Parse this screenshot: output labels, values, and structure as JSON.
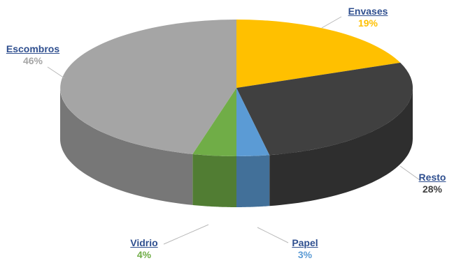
{
  "chart_data": {
    "type": "pie",
    "style": "3d",
    "slices": [
      {
        "label": "Envases",
        "value": 19,
        "pct_label": "19%",
        "color": "#ffc000",
        "pct_color": "#ffc000"
      },
      {
        "label": "Resto",
        "value": 28,
        "pct_label": "28%",
        "color": "#404040",
        "pct_color": "#404040"
      },
      {
        "label": "Papel",
        "value": 3,
        "pct_label": "3%",
        "color": "#5b9bd5",
        "pct_color": "#5b9bd5"
      },
      {
        "label": "Vidrio",
        "value": 4,
        "pct_label": "4%",
        "color": "#70ad47",
        "pct_color": "#70ad47"
      },
      {
        "label": "Escombros",
        "value": 46,
        "pct_label": "46%",
        "color": "#a5a5a5",
        "pct_color": "#a5a5a5"
      }
    ],
    "legend": "none",
    "label_color": "#2f4f8f"
  }
}
